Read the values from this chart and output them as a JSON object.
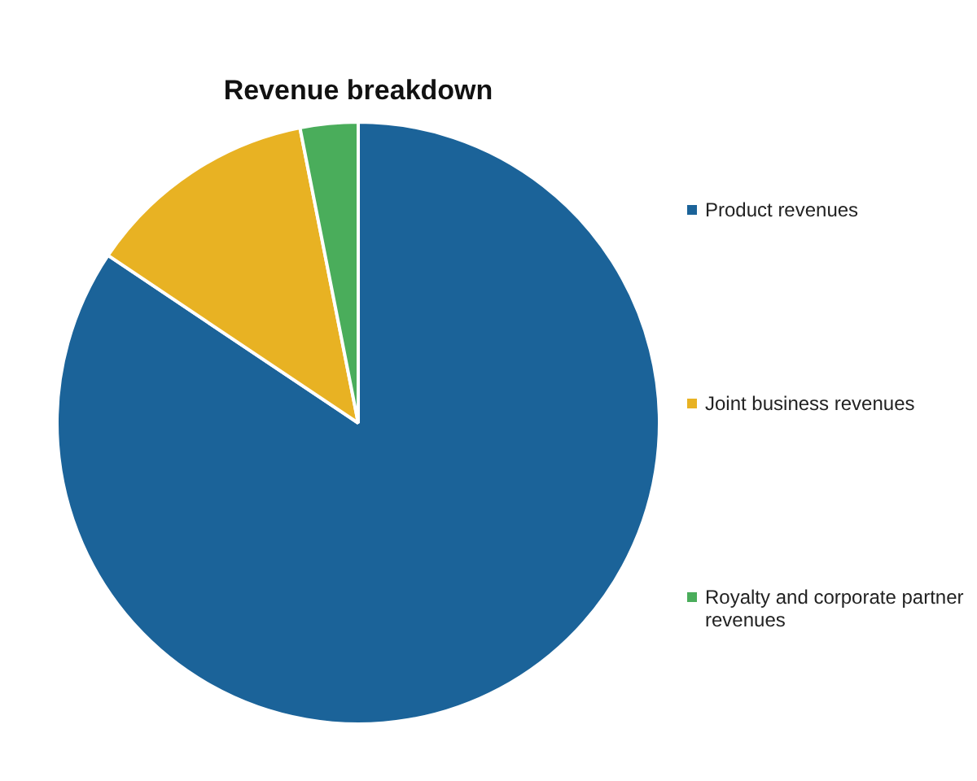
{
  "chart_data": {
    "type": "pie",
    "title": "Revenue breakdown",
    "categories": [
      "Product revenues",
      "Joint business revenues",
      "Royalty and corporate partner revenues"
    ],
    "values": [
      84.4,
      12.5,
      3.1
    ],
    "colors": [
      "#1b6399",
      "#e8b223",
      "#4aad5b"
    ],
    "legend": "right"
  }
}
